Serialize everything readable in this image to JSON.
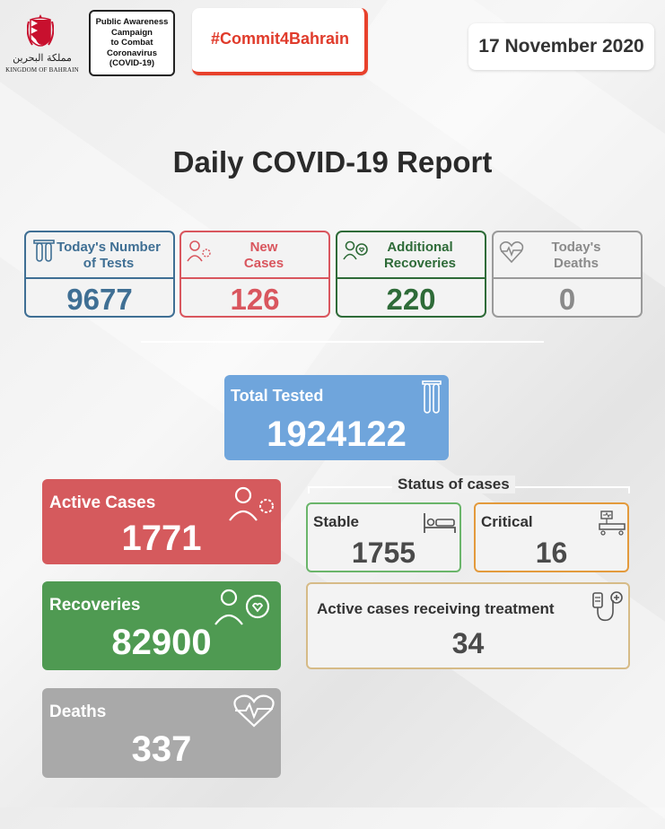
{
  "header": {
    "kingdom_ar": "مملكة البحرين",
    "kingdom_en": "KINGDOM OF BAHRAIN",
    "campaign_lines": [
      "Public Awareness",
      "Campaign",
      "to Combat",
      "Coronavirus",
      "(COVID-19)"
    ],
    "hashtag": "#Commit4Bahrain",
    "date": "17 November 2020"
  },
  "title": "Daily COVID-19 Report",
  "daily": {
    "tests": {
      "label_1": "Today's Number",
      "label_2": "of Tests",
      "value": "9677",
      "color": "#3f6f94"
    },
    "new_cases": {
      "label_1": "New",
      "label_2": "Cases",
      "value": "126",
      "color": "#d9565e"
    },
    "recoveries": {
      "label_1": "Additional",
      "label_2": "Recoveries",
      "value": "220",
      "color": "#2e6b38"
    },
    "deaths": {
      "label_1": "Today's",
      "label_2": "Deaths",
      "value": "0",
      "color": "#8a8a8a"
    }
  },
  "total_tested": {
    "label": "Total Tested",
    "value": "1924122",
    "color": "#6fa5dc"
  },
  "active_cases": {
    "label": "Active Cases",
    "value": "1771",
    "color": "#d55a5d"
  },
  "recoveries_total": {
    "label": "Recoveries",
    "value": "82900",
    "color": "#4f9a52"
  },
  "deaths_total": {
    "label": "Deaths",
    "value": "337",
    "color": "#a9a9a9"
  },
  "status": {
    "title": "Status of cases",
    "stable": {
      "label": "Stable",
      "value": "1755",
      "color": "#6ab56a"
    },
    "critical": {
      "label": "Critical",
      "value": "16",
      "color": "#e39a3c"
    },
    "treatment": {
      "label": "Active cases receiving treatment",
      "value": "34",
      "color": "#d6bb87"
    }
  },
  "icons": [
    "bahrain-emblem-icon",
    "test-tubes-icon",
    "virus-person-icon",
    "recovered-people-icon",
    "heartbeat-icon",
    "hospital-bed-icon",
    "icu-bed-icon",
    "iv-drip-icon"
  ]
}
